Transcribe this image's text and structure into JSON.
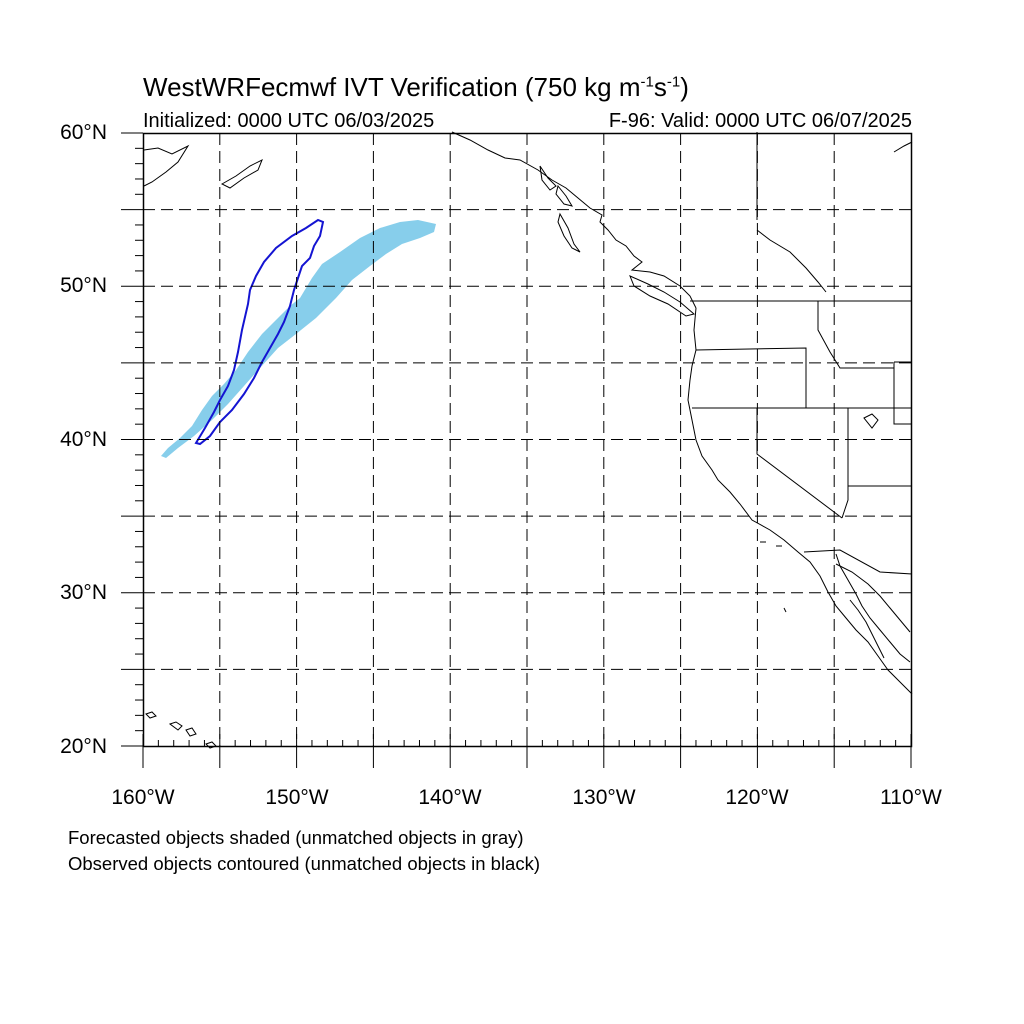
{
  "title": {
    "main": "WestWRFecmwf IVT Verification (750 kg m",
    "sup1": "-1",
    "mid": "s",
    "sup2": "-1",
    "end": ")"
  },
  "initialized": "Initialized: 0000 UTC 06/03/2025",
  "valid": "F-96: Valid: 0000 UTC 06/07/2025",
  "map": {
    "projection": "cylindrical equidistant",
    "lon_range": [
      -160,
      -110
    ],
    "lat_range": [
      20,
      60
    ],
    "gridlines": "dashed, every 5 degrees",
    "lat_labels": [
      "60°N",
      "50°N",
      "40°N",
      "30°N",
      "20°N"
    ],
    "lon_labels": [
      "160°W",
      "150°W",
      "140°W",
      "130°W",
      "120°W",
      "110°W"
    ],
    "forecast_object_color": "#87ceeb",
    "observed_object_color": "#1414d2",
    "coastline_color": "#000000"
  },
  "footnotes": [
    "Forecasted objects shaded (unmatched objects in gray)",
    "Observed objects contoured (unmatched objects in black)"
  ]
}
